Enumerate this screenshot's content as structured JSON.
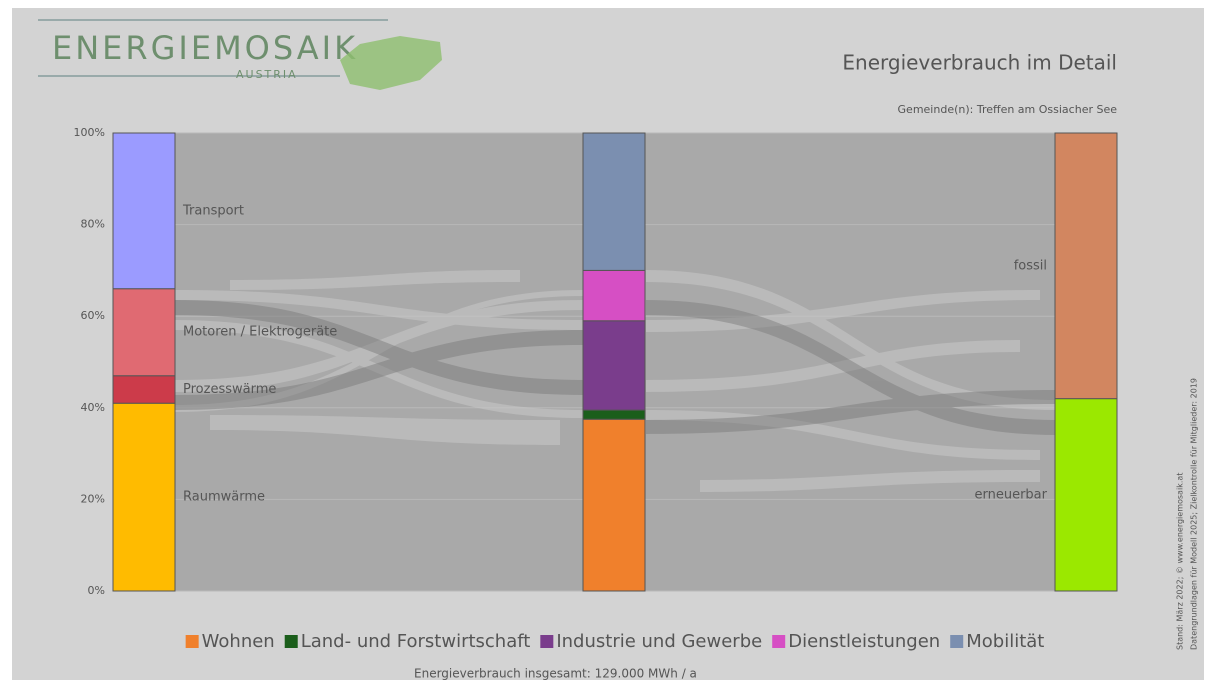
{
  "chart_data": {
    "type": "stacked-columns",
    "logo": {
      "name": "ENERGIEMOSAIK",
      "sub": "AUSTRIA"
    },
    "title": "Energieverbrauch im Detail",
    "subtitle": "Gemeinde(n): Treffen am Ossiacher See",
    "footer": "Energieverbrauch insgesamt: 129.000 MWh / a",
    "side_notes": [
      "Stand: März 2022; © www.energiemosaik.at",
      "Datengrundlagen für Modell 2025; Zielkontrolle für Mitglieder: 2019"
    ],
    "ylim": [
      0,
      100
    ],
    "yticks": [
      {
        "value": 0,
        "label": "0%"
      },
      {
        "value": 20,
        "label": "20%"
      },
      {
        "value": 40,
        "label": "40%"
      },
      {
        "value": 60,
        "label": "60%"
      },
      {
        "value": 80,
        "label": "80%"
      },
      {
        "value": 100,
        "label": "100%"
      }
    ],
    "grid": true,
    "stacks": [
      {
        "labels": "right",
        "segments": [
          {
            "name": "Raumwärme",
            "color": "#ffbb00",
            "value": 41
          },
          {
            "name": "Prozesswärme",
            "color": "#cc3b4a",
            "value": 6
          },
          {
            "name": "Motoren / Elektrogeräte",
            "color": "#e06a72",
            "value": 19
          },
          {
            "name": "Transport",
            "color": "#9b9bff",
            "value": 34
          }
        ]
      },
      {
        "labels": "legend",
        "segments": [
          {
            "name": "Wohnen",
            "color": "#f0802c",
            "value": 37.5
          },
          {
            "name": "Land- und Forstwirtschaft",
            "color": "#1b5e1b",
            "value": 2
          },
          {
            "name": "Industrie und Gewerbe",
            "color": "#7a3d8c",
            "value": 19.5
          },
          {
            "name": "Dienstleistungen",
            "color": "#d64fc4",
            "value": 11
          },
          {
            "name": "Mobilität",
            "color": "#7b8fb0",
            "value": 30
          }
        ]
      },
      {
        "labels": "left",
        "segments": [
          {
            "name": "erneuerbar",
            "color": "#9be800",
            "value": 42
          },
          {
            "name": "fossil",
            "color": "#d28660",
            "value": 58
          }
        ]
      }
    ]
  }
}
